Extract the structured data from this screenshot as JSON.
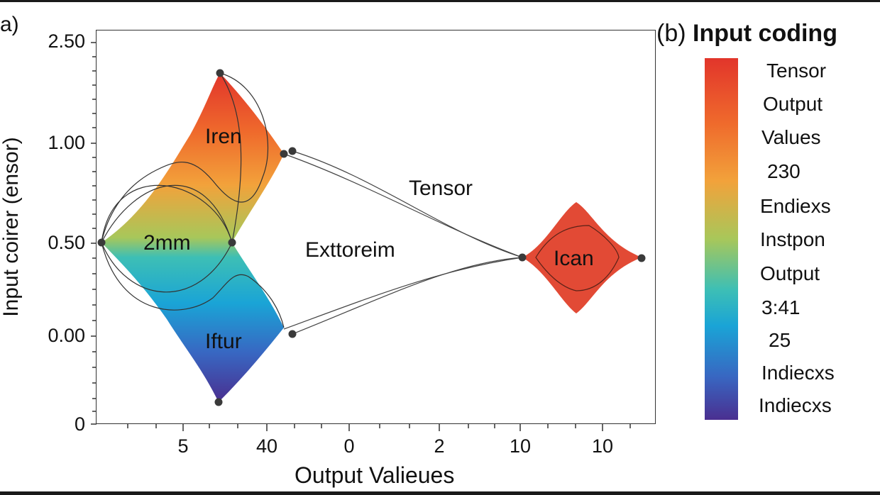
{
  "panel_a": {
    "label": "a)",
    "y_axis_label": "Input coirer (ensor)",
    "x_axis_label": "Output  Valieues",
    "y_ticks": [
      "2.50",
      "1.00",
      "0.50",
      "0.00",
      "0"
    ],
    "x_ticks": [
      "5",
      "40",
      "0",
      "2",
      "10",
      "10"
    ],
    "nodes": {
      "top": "Iren",
      "middle": "2mm",
      "bottom": "Iftur",
      "right": "Ican"
    },
    "annotations": {
      "upper": "Tensor",
      "lower": "Exttoreim"
    },
    "colors": {
      "gradient_top": "#e2352b",
      "gradient_mid": "#a8c75a",
      "gradient_cyan": "#1aa4d6",
      "gradient_bottom": "#4a2f90",
      "right_node": "#e24a35",
      "node_dot": "#3a3a3a"
    }
  },
  "panel_b": {
    "letter": "(b)",
    "title": "Input coding",
    "labels": [
      "Tensor",
      "Output",
      "Values",
      "230",
      "Endiexs",
      "Instpon",
      "Output",
      "3:41",
      "25",
      "Indiecxs",
      "Indiecxs"
    ]
  }
}
